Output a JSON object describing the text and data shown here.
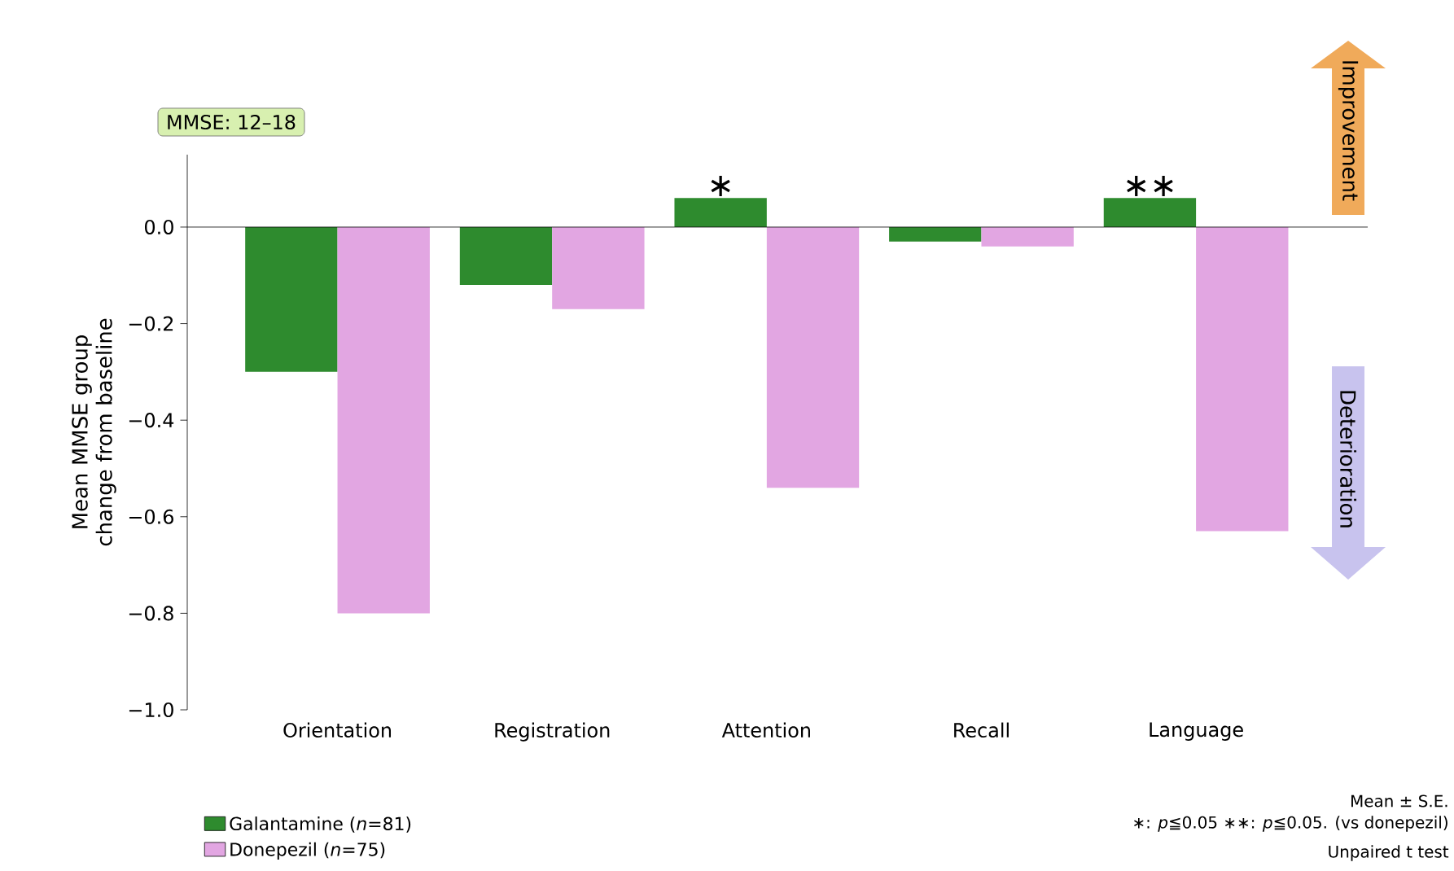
{
  "chart_data": {
    "type": "bar",
    "ylabel": "Mean MMSE group change from baseline",
    "categories": [
      "Orientation",
      "Registration",
      "Attention",
      "Recall",
      "Language"
    ],
    "series": [
      {
        "name": "Galantamine (*n*=81)",
        "color": "#2e8b2e",
        "values": [
          -0.3,
          -0.12,
          0.06,
          -0.03,
          0.06
        ]
      },
      {
        "name": "Donepezil (*n*=75)",
        "color": "#e2a6e2",
        "values": [
          -0.8,
          -0.17,
          -0.54,
          -0.04,
          -0.63
        ]
      }
    ],
    "ylim": [
      -1.0,
      0.15
    ],
    "yticks": [
      {
        "value": -1.0,
        "label": "−1.0"
      },
      {
        "value": -0.8,
        "label": "−0.8"
      },
      {
        "value": -0.6,
        "label": "−0.6"
      },
      {
        "value": -0.4,
        "label": "−0.4"
      },
      {
        "value": -0.2,
        "label": "−0.2"
      },
      {
        "value": 0.0,
        "label": "0.0"
      }
    ],
    "legend": "bottom left",
    "annotations": [
      "MMSE: 12–18",
      {
        "text": "∗",
        "x": "Attention",
        "y": 0.06
      },
      {
        "text": "∗∗",
        "x": "Language",
        "y": 0.06
      },
      "Improvement",
      "Deterioration",
      "Mean ± S.E.",
      "∗: *p*≦0.05 ∗∗: *p*≦0.05. (vs donepezil)",
      "Unpaired t test"
    ]
  }
}
